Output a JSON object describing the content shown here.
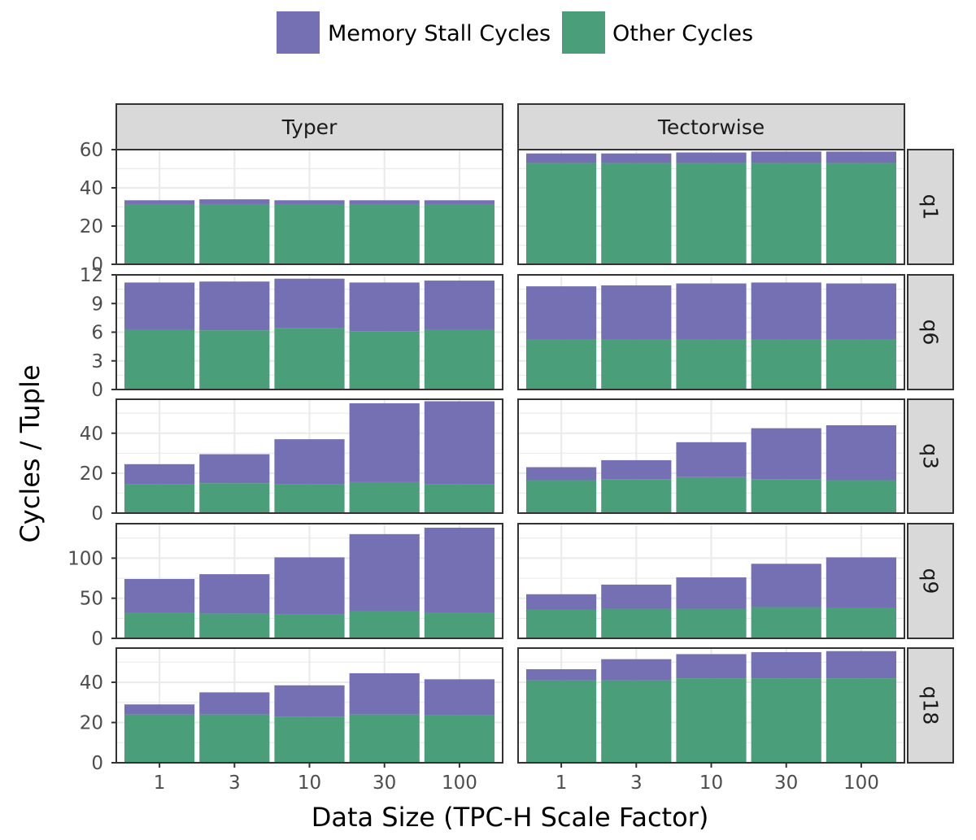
{
  "chart_data": {
    "type": "bar",
    "stacked": true,
    "xlabel": "Data Size (TPC-H Scale Factor)",
    "ylabel": "Cycles / Tuple",
    "categories": [
      "1",
      "3",
      "10",
      "30",
      "100"
    ],
    "legend": {
      "placement": "top",
      "entries": [
        {
          "name": "Memory Stall Cycles",
          "color": "#7570b3"
        },
        {
          "name": "Other Cycles",
          "color": "#4a9e7a"
        }
      ]
    },
    "columns": [
      "Typer",
      "Tectorwise"
    ],
    "rows": [
      {
        "label": "q1",
        "ylim": [
          0,
          60
        ],
        "yticks": [
          "0",
          "20",
          "40",
          "60"
        ],
        "yticks_values": [
          0,
          20,
          40,
          60
        ],
        "panels": [
          {
            "column": "Typer",
            "series": [
              {
                "name": "Other Cycles",
                "values": [
                  31.5,
                  31.5,
                  31.5,
                  31.5,
                  31.5
                ]
              },
              {
                "name": "Memory Stall Cycles",
                "values": [
                  2,
                  2.5,
                  2,
                  2,
                  2
                ]
              }
            ]
          },
          {
            "column": "Tectorwise",
            "series": [
              {
                "name": "Other Cycles",
                "values": [
                  53,
                  53,
                  53,
                  53,
                  53
                ]
              },
              {
                "name": "Memory Stall Cycles",
                "values": [
                  5,
                  5,
                  5.5,
                  6,
                  6
                ]
              }
            ]
          }
        ]
      },
      {
        "label": "q6",
        "ylim": [
          0,
          12
        ],
        "yticks": [
          "0",
          "3",
          "6",
          "9",
          "12"
        ],
        "yticks_values": [
          0,
          3,
          6,
          9,
          12
        ],
        "panels": [
          {
            "column": "Typer",
            "series": [
              {
                "name": "Other Cycles",
                "values": [
                  6.3,
                  6.2,
                  6.4,
                  6.1,
                  6.3
                ]
              },
              {
                "name": "Memory Stall Cycles",
                "values": [
                  4.9,
                  5.1,
                  5.2,
                  5.1,
                  5.1
                ]
              }
            ]
          },
          {
            "column": "Tectorwise",
            "series": [
              {
                "name": "Other Cycles",
                "values": [
                  5.2,
                  5.2,
                  5.2,
                  5.2,
                  5.2
                ]
              },
              {
                "name": "Memory Stall Cycles",
                "values": [
                  5.6,
                  5.7,
                  5.9,
                  6.0,
                  5.9
                ]
              }
            ]
          }
        ]
      },
      {
        "label": "q3",
        "ylim": [
          0,
          57
        ],
        "yticks": [
          "0",
          "20",
          "40"
        ],
        "yticks_values": [
          0,
          20,
          40
        ],
        "panels": [
          {
            "column": "Typer",
            "series": [
              {
                "name": "Other Cycles",
                "values": [
                  14.5,
                  15,
                  14.5,
                  15.5,
                  14.5
                ]
              },
              {
                "name": "Memory Stall Cycles",
                "values": [
                  10,
                  14.5,
                  22.5,
                  39.5,
                  41.5
                ]
              }
            ]
          },
          {
            "column": "Tectorwise",
            "series": [
              {
                "name": "Other Cycles",
                "values": [
                  16.5,
                  17,
                  18,
                  17,
                  16.5
                ]
              },
              {
                "name": "Memory Stall Cycles",
                "values": [
                  6.5,
                  9.5,
                  17.5,
                  25.5,
                  27.5
                ]
              }
            ]
          }
        ]
      },
      {
        "label": "q9",
        "ylim": [
          0,
          143
        ],
        "yticks": [
          "0",
          "50",
          "100"
        ],
        "yticks_values": [
          0,
          50,
          100
        ],
        "panels": [
          {
            "column": "Typer",
            "series": [
              {
                "name": "Other Cycles",
                "values": [
                  32,
                  31,
                  30,
                  34,
                  32
                ]
              },
              {
                "name": "Memory Stall Cycles",
                "values": [
                  42,
                  49,
                  71,
                  96,
                  106
                ]
              }
            ]
          },
          {
            "column": "Tectorwise",
            "series": [
              {
                "name": "Other Cycles",
                "values": [
                  36,
                  37,
                  37,
                  39,
                  38
                ]
              },
              {
                "name": "Memory Stall Cycles",
                "values": [
                  19,
                  30,
                  39,
                  54,
                  63
                ]
              }
            ]
          }
        ]
      },
      {
        "label": "q18",
        "ylim": [
          0,
          57
        ],
        "yticks": [
          "0",
          "20",
          "40"
        ],
        "yticks_values": [
          0,
          20,
          40
        ],
        "panels": [
          {
            "column": "Typer",
            "series": [
              {
                "name": "Other Cycles",
                "values": [
                  24,
                  24,
                  23,
                  24,
                  23.5
                ]
              },
              {
                "name": "Memory Stall Cycles",
                "values": [
                  5,
                  11,
                  15.5,
                  20.5,
                  18
                ]
              }
            ]
          },
          {
            "column": "Tectorwise",
            "series": [
              {
                "name": "Other Cycles",
                "values": [
                  41,
                  41,
                  42,
                  42,
                  42
                ]
              },
              {
                "name": "Memory Stall Cycles",
                "values": [
                  5.5,
                  10.5,
                  12,
                  13,
                  13.5
                ]
              }
            ]
          }
        ]
      }
    ]
  }
}
